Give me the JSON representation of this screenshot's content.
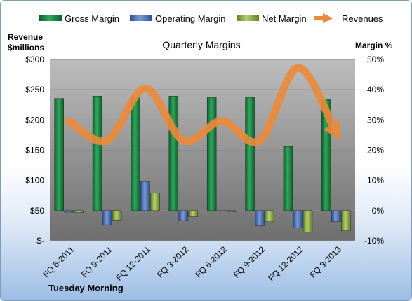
{
  "chart_data": {
    "type": "bar",
    "title": "Quarterly Margins",
    "company": "Tuesday Morning",
    "left_axis_title": [
      "Revenue",
      "$millions"
    ],
    "right_axis_title": "Margin %",
    "left_ticks": [
      "$-",
      "$50",
      "$100",
      "$150",
      "$200",
      "$250",
      "$300"
    ],
    "right_ticks": [
      "-10%",
      "0%",
      "10%",
      "20%",
      "30%",
      "40%",
      "50%"
    ],
    "left_range": [
      0,
      300
    ],
    "right_range": [
      -10,
      50
    ],
    "categories": [
      "FQ 6-2011",
      "FQ 9-2011",
      "FQ 12-2011",
      "FQ 3-2012",
      "FQ 6-2012",
      "FQ 9-2012",
      "FQ 12-2012",
      "FQ 3-2013"
    ],
    "series": [
      {
        "name": "Gross Margin",
        "axis": "right",
        "kind": "bar",
        "color": "#1e8c4a",
        "values": [
          37.1,
          37.9,
          37.6,
          37.9,
          37.4,
          37.4,
          21.2,
          36.8
        ]
      },
      {
        "name": "Operating Margin",
        "axis": "right",
        "kind": "bar",
        "color": "#4f77c0",
        "values": [
          -0.5,
          -4.7,
          9.6,
          -3.3,
          -0.2,
          -5.0,
          -5.7,
          -3.7
        ]
      },
      {
        "name": "Net Margin",
        "axis": "right",
        "kind": "bar",
        "color": "#8fb04a",
        "values": [
          -0.6,
          -3.1,
          5.9,
          -2.0,
          -0.4,
          -3.7,
          -7.1,
          -6.7
        ]
      },
      {
        "name": "Revenues",
        "axis": "left",
        "kind": "line",
        "color": "#ec8a3a",
        "values": [
          198,
          166,
          252,
          166,
          198,
          166,
          286,
          179
        ]
      }
    ],
    "legend_position": "top",
    "grid": true
  }
}
